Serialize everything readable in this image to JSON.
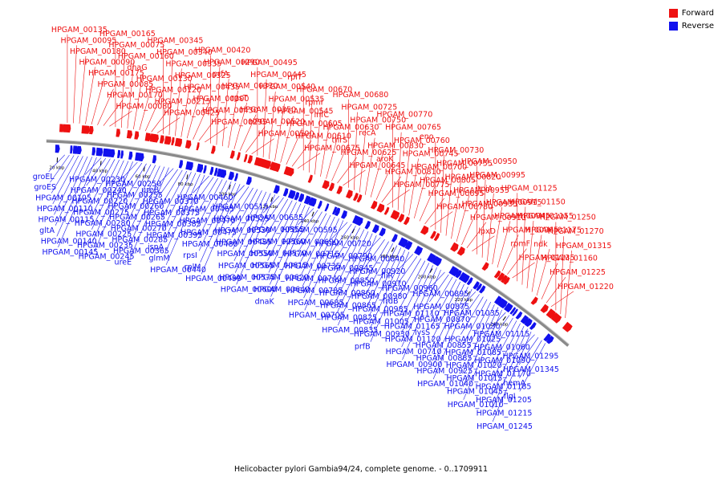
{
  "caption": "Helicobacter pylori Gambia94/24, complete genome. - 0..1709911",
  "legend": [
    {
      "label": "Forward",
      "color": "#ee1111"
    },
    {
      "label": "Reverse",
      "color": "#1111ee"
    }
  ],
  "colors": {
    "forward": "#ee1111",
    "reverse": "#1111ee",
    "backbone": "#8a8a8a"
  },
  "ticks": [
    "20 kbp",
    "40 kbp",
    "60 kbp",
    "80 kbp",
    "100 kbp",
    "120 kbp",
    "140 kbp",
    "160 kbp",
    "180 kbp",
    "200 kbp",
    "220 kbp",
    "240 kbp"
  ],
  "forward_labels": [
    "HPGAM_00135",
    "HPGAM_00095",
    "HPGAM_00180",
    "HPGAM_00090",
    "HPGAM_00175",
    "HPGAM_00085",
    "HPGAM_00170",
    "HPGAM_00080",
    "HPGAM_00165",
    "HPGAM_00075",
    "HPGAM_00160",
    "dnaG",
    "HPGAM_00130",
    "HPGAM_00120",
    "HPGAM_00215",
    "HPGAM_00425",
    "HPGAM_00345",
    "HPGAM_00340",
    "HPGAM_00335",
    "HPGAM_00325",
    "HPGAM_00435",
    "HPGAM_00300",
    "HPGAM_00430",
    "HPGAM_00295",
    "HPGAM_00420",
    "HPGAM_00290",
    "prfA",
    "HPGAM_00330",
    "rpsT",
    "HPGAM_00350",
    "HPGAM_00520",
    "HPGAM_00500",
    "HPGAM_00495",
    "HPGAM_00445",
    "HPGAM_00540",
    "HPGAM_00535",
    "HPGAM_00545",
    "HPGAM_00605",
    "HPGAM_00610",
    "HPGAM_00675",
    "rplT",
    "HPGAM_00670",
    "rpmI",
    "infC",
    "HPGAM_00630",
    "thrS",
    "HPGAM_00625",
    "HPGAM_00645",
    "HPGAM_00680",
    "HPGAM_00725",
    "HPGAM_00750",
    "recA",
    "HPGAM_00830",
    "aroK",
    "HPGAM_00810",
    "HPGAM_00775",
    "HPGAM_00770",
    "HPGAM_00765",
    "HPGAM_00760",
    "HPGAM_00745",
    "HPGAM_00700",
    "HPGAM_00805",
    "HPGAM_00695",
    "HPGAM_00780",
    "eno",
    "HPGAM_00730",
    "HPGAM_00755",
    "HPGAM_00820",
    "HPGAM_00955",
    "HPGAM_00935",
    "HPGAM_00910",
    "lpxD",
    "HPGAM_00950",
    "HPGAM_00995",
    "tpiA",
    "HPGAM_00915",
    "HPGAM_00945",
    "HPGAM_00965",
    "rpmF",
    "HPGAM_01135",
    "HPGAM_01125",
    "HPGAM_01150",
    "HPGAM_01155",
    "HPGAM_01175",
    "ndk",
    "HPGAM_01160",
    "HPGAM_01225",
    "HPGAM_01220",
    "HPGAM_01250",
    "HPGAM_01270",
    "HPGAM_01315"
  ],
  "reverse_labels": [
    "groEL",
    "groES",
    "HPGAM_00105",
    "HPGAM_00110",
    "HPGAM_00115",
    "gltA",
    "HPGAM_00140",
    "HPGAM_00145",
    "HPGAM_00230",
    "HPGAM_00240",
    "HPGAM_00220",
    "HPGAM_00275",
    "HPGAM_00280",
    "HPGAM_00225",
    "HPGAM_00235",
    "HPGAM_00245",
    "HPGAM_00250",
    "HPGAM_00255",
    "HPGAM_00260",
    "HPGAM_00265",
    "HPGAM_00270",
    "HPGAM_00285",
    "HPGAM_00365",
    "ureE",
    "ureB",
    "HPGAM_00370",
    "HPGAM_00375",
    "HPGAM_00385",
    "HPGAM_00395",
    "ispA",
    "glmM",
    "HPGAM_00440",
    "HPGAM_00460",
    "HPGAM_00465",
    "HPGAM_00470",
    "HPGAM_00475",
    "HPGAM_00480",
    "rpsI",
    "rplM",
    "HPGAM_00490",
    "HPGAM_00515",
    "HPGAM_00525",
    "HPGAM_00530",
    "HPGAM_00485",
    "HPGAM_00550",
    "HPGAM_00565",
    "HPGAM_00575",
    "HPGAM_00600",
    "HPGAM_00635",
    "HPGAM_00555",
    "HPGAM_00560",
    "HPGAM_00570",
    "HPGAM_00615",
    "HPGAM_00620",
    "HPGAM_00640",
    "dnaK",
    "HPGAM_00595",
    "HPGAM_00690",
    "HPGAM_00715",
    "HPGAM_00735",
    "HPGAM_00740",
    "HPGAM_00785",
    "HPGAM_00685",
    "HPGAM_00705",
    "HPGAM_00720",
    "HPGAM_00790",
    "HPGAM_00845",
    "HPGAM_00850",
    "HPGAM_00860",
    "HPGAM_00865",
    "HPGAM_00825",
    "HPGAM_00835",
    "HPGAM_00840",
    "HPGAM_00920",
    "HPGAM_00970",
    "HPGAM_00980",
    "HPGAM_00985",
    "HPGAM_01005",
    "HPGAM_00930",
    "prfB",
    "fliR",
    "HPGAM_00960",
    "frdB",
    "HPGAM_01110",
    "HPGAM_01165",
    "HPGAM_01120",
    "HPGAM_00710",
    "HPGAM_00900",
    "HPGAM_00895",
    "HPGAM_00875",
    "HPGAM_00870",
    "lysS",
    "HPGAM_00855",
    "HPGAM_00885",
    "HPGAM_00925",
    "HPGAM_01040",
    "HPGAM_01035",
    "HPGAM_01030",
    "HPGAM_01025",
    "HPGAM_01085",
    "HPGAM_01020",
    "HPGAM_01015",
    "HPGAM_01045",
    "HPGAM_01010",
    "HPGAM_01115",
    "HPGAM_01060",
    "HPGAM_01090",
    "HPGAM_01170",
    "HPGAM_01185",
    "HPGAM_01205",
    "HPGAM_01215",
    "HPGAM_01245",
    "HPGAM_01295",
    "HPGAM_01345",
    "hemA",
    "flgI"
  ]
}
